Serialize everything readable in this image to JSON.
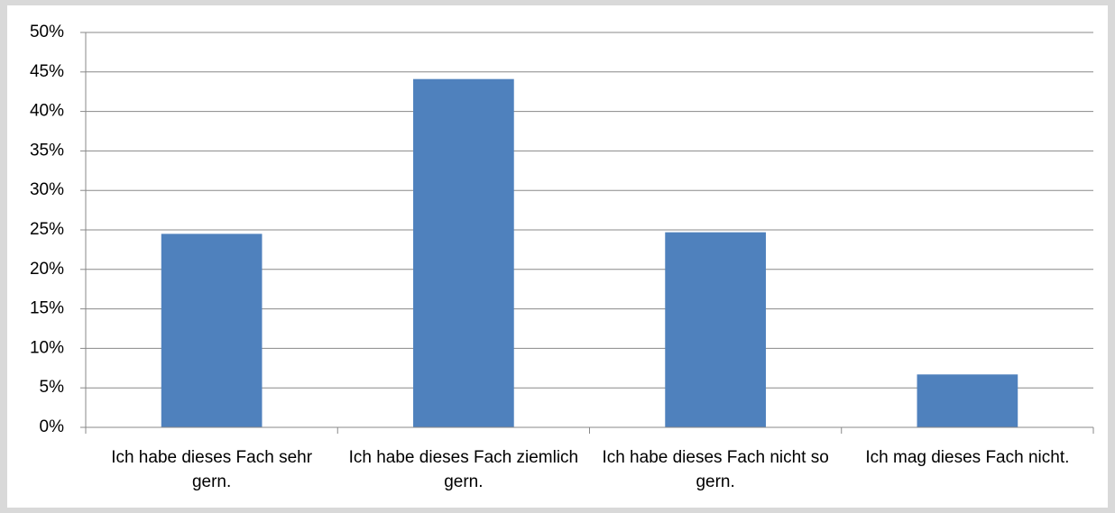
{
  "chart_data": {
    "type": "bar",
    "categories": [
      "Ich habe dieses Fach sehr gern.",
      "Ich habe dieses Fach ziemlich gern.",
      "Ich habe dieses Fach nicht so gern.",
      "Ich mag dieses Fach nicht."
    ],
    "values": [
      24.5,
      44.1,
      24.7,
      6.7
    ],
    "color": "#4f81bd",
    "ylim": [
      0,
      50
    ],
    "yticks": [
      {
        "value": 0,
        "label": "0%"
      },
      {
        "value": 5,
        "label": "5%"
      },
      {
        "value": 10,
        "label": "10%"
      },
      {
        "value": 15,
        "label": "15%"
      },
      {
        "value": 20,
        "label": "20%"
      },
      {
        "value": 25,
        "label": "25%"
      },
      {
        "value": 30,
        "label": "30%"
      },
      {
        "value": 35,
        "label": "35%"
      },
      {
        "value": 40,
        "label": "40%"
      },
      {
        "value": 45,
        "label": "45%"
      },
      {
        "value": 50,
        "label": "50%"
      }
    ],
    "grid": true
  }
}
